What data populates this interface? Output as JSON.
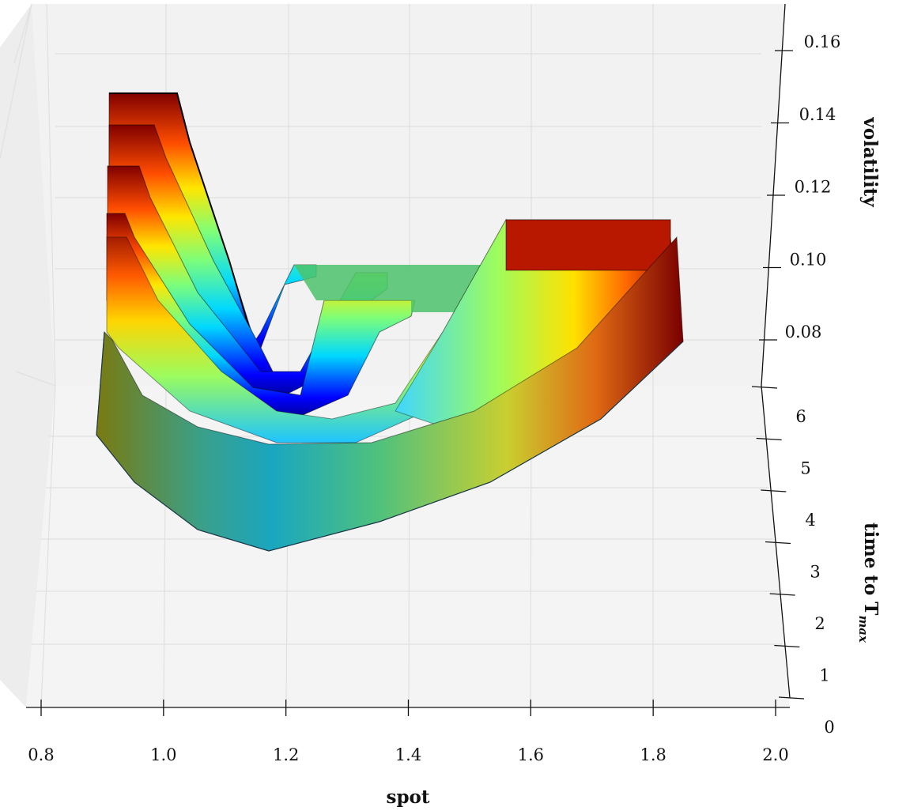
{
  "chart_data": {
    "type": "surface3d",
    "title": "",
    "xlabel": "spot",
    "ylabel": "time to T",
    "ylabel_subscript": "max",
    "zlabel": "volatility",
    "xlim": [
      0.8,
      2.0
    ],
    "ylim": [
      0,
      6
    ],
    "zlim": [
      0.07,
      0.17
    ],
    "x_ticks": [
      "0.8",
      "1.0",
      "1.2",
      "1.4",
      "1.6",
      "1.8",
      "2.0"
    ],
    "y_ticks": [
      "0",
      "1",
      "2",
      "3",
      "4",
      "5",
      "6"
    ],
    "z_ticks": [
      "0.08",
      "0.10",
      "0.12",
      "0.14",
      "0.16"
    ],
    "colormap": "jet",
    "grid": true,
    "pane_color": "#f2f2f2",
    "surface": {
      "description_points": [
        {
          "time": 0,
          "spot_start": 0.9,
          "spot_end": 1.85,
          "vol_min": 0.095,
          "vol_max": 0.11
        },
        {
          "time": 3.5,
          "spot_start": 0.92,
          "spot_end": 1.83,
          "vol_min": 0.08,
          "vol_max": 0.135
        },
        {
          "time": 5.2,
          "spot_start": 0.92,
          "spot_end": 1.3,
          "vol_min": 0.074,
          "vol_max": 0.145
        },
        {
          "time": 6,
          "spot_start": 0.92,
          "spot_end": 1.3,
          "vol_min": 0.072,
          "vol_max": 0.15
        }
      ]
    }
  }
}
